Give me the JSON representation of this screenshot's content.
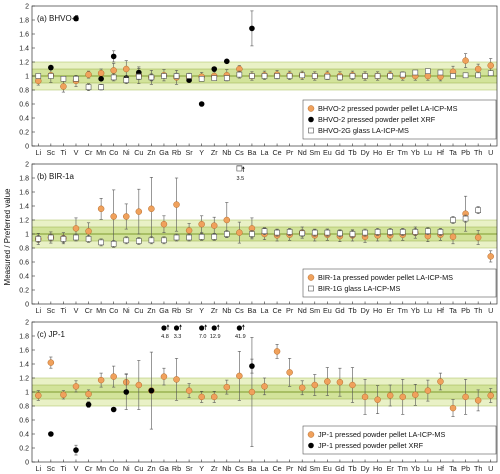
{
  "chart_data": {
    "type": "scatter",
    "ylabel": "Measured / Preferred value",
    "ylim": [
      0,
      2
    ],
    "yticks": [
      "0",
      "0.2",
      "0.4",
      "0.6",
      "0.8",
      "1",
      "1.2",
      "1.4",
      "1.6",
      "1.8",
      "2"
    ],
    "band_colors": {
      "outer": "#e9f1c6",
      "inner": "#d2e39a",
      "center": "#7f9b2e"
    },
    "marker_colors": {
      "lams": "#f0a15c",
      "xrf": "#000000",
      "glass": "#ffffff"
    },
    "elements": [
      "Li",
      "Sc",
      "Ti",
      "V",
      "Cr",
      "Mn",
      "Co",
      "Ni",
      "Cu",
      "Zn",
      "Ga",
      "Rb",
      "Sr",
      "Y",
      "Zr",
      "Nb",
      "Cs",
      "Ba",
      "La",
      "Ce",
      "Pr",
      "Nd",
      "Sm",
      "Eu",
      "Gd",
      "Tb",
      "Dy",
      "Ho",
      "Er",
      "Tm",
      "Yb",
      "Lu",
      "Hf",
      "Ta",
      "Pb",
      "Th",
      "U"
    ],
    "panels": [
      {
        "title": "(a) BHVO-2",
        "series": [
          {
            "name": "BHVO-2 pressed powder pellet LA-ICP-MS",
            "marker": "lams",
            "y": [
              0.93,
              1.01,
              0.85,
              0.93,
              1.02,
              1.04,
              1.08,
              1.1,
              1.01,
              0.98,
              1.01,
              0.98,
              0.98,
              0.99,
              1.0,
              1.01,
              1.1,
              1.0,
              1.01,
              1.02,
              1.01,
              1.01,
              1.0,
              1.01,
              1.0,
              1.01,
              1.0,
              1.0,
              1.01,
              1.0,
              1.0,
              1.0,
              0.99,
              1.06,
              1.22,
              1.1,
              1.15
            ],
            "err": [
              0.06,
              0.1,
              0.08,
              0.08,
              0.05,
              0.06,
              0.1,
              0.12,
              0.12,
              0.1,
              0.08,
              0.1,
              0.06,
              0.06,
              0.06,
              0.08,
              0.05,
              0.06,
              0.06,
              0.06,
              0.06,
              0.06,
              0.06,
              0.06,
              0.06,
              0.06,
              0.06,
              0.06,
              0.06,
              0.06,
              0.06,
              0.06,
              0.06,
              0.08,
              0.1,
              0.07,
              0.1
            ]
          },
          {
            "name": "BHVO-2 pressed powder pellet XRF",
            "marker": "xrf",
            "y": [
              null,
              1.12,
              null,
              1.82,
              null,
              0.96,
              1.28,
              0.97,
              1.05,
              0.98,
              1.0,
              1.0,
              0.94,
              0.6,
              1.1,
              1.21,
              null,
              1.68,
              null,
              null,
              null,
              null,
              null,
              null,
              null,
              null,
              null,
              null,
              null,
              null,
              null,
              null,
              null,
              null,
              null,
              null,
              null
            ],
            "err": [
              null,
              0,
              null,
              0,
              null,
              0,
              0.08,
              0,
              0.06,
              0.05,
              0,
              0,
              0,
              0,
              0,
              0,
              null,
              0.25,
              null,
              null,
              null,
              null,
              null,
              null,
              null,
              null,
              null,
              null,
              null,
              null,
              null,
              null,
              null,
              null,
              null,
              null,
              null
            ]
          },
          {
            "name": "BHVO-2G glass LA-ICP-MS",
            "marker": "glass",
            "y": [
              1.0,
              1.0,
              0.96,
              0.96,
              0.84,
              0.84,
              0.98,
              0.94,
              0.99,
              0.98,
              1.0,
              1.0,
              1.0,
              0.96,
              0.97,
              0.97,
              1.02,
              1.0,
              1.0,
              1.0,
              1.0,
              1.01,
              1.0,
              0.99,
              0.98,
              1.0,
              1.0,
              1.0,
              1.0,
              1.02,
              1.05,
              1.07,
              1.05,
              1.0,
              1.01,
              1.01,
              1.04
            ],
            "err": [
              0.03,
              0.03,
              0.03,
              0.03,
              0.05,
              0.04,
              0.05,
              0.05,
              0.04,
              0.04,
              0.03,
              0.04,
              0.03,
              0.03,
              0.03,
              0.03,
              0.05,
              0.03,
              0.03,
              0.03,
              0.03,
              0.03,
              0.03,
              0.03,
              0.03,
              0.03,
              0.03,
              0.03,
              0.03,
              0.03,
              0.03,
              0.03,
              0.03,
              0.03,
              0.03,
              0.03,
              0.03
            ]
          }
        ],
        "annotations": []
      },
      {
        "title": "(b) BIR-1a",
        "series": [
          {
            "name": "BIR-1a pressed powder pellet LA-ICP-MS",
            "marker": "lams",
            "y": [
              0.93,
              0.95,
              0.94,
              1.08,
              1.04,
              1.36,
              1.25,
              1.25,
              1.32,
              1.36,
              1.14,
              1.42,
              1.05,
              1.14,
              1.12,
              1.2,
              1.02,
              1.08,
              1.0,
              0.98,
              0.99,
              1.02,
              0.98,
              0.99,
              0.97,
              0.98,
              0.96,
              0.98,
              0.98,
              0.99,
              1.02,
              0.97,
              0.99,
              0.96,
              1.29,
              0.95,
              0.68
            ],
            "err": [
              0.08,
              0.08,
              0.08,
              0.15,
              0.12,
              0.15,
              0.38,
              0.18,
              0.32,
              0.45,
              0.12,
              0.38,
              0.1,
              0.12,
              0.12,
              0.25,
              0.15,
              0.15,
              0.08,
              0.08,
              0.08,
              0.08,
              0.08,
              0.08,
              0.08,
              0.08,
              0.08,
              0.08,
              0.08,
              0.08,
              0.08,
              0.08,
              0.08,
              0.1,
              0.25,
              0.1,
              0.08
            ]
          },
          {
            "name": "BIR-1G glass LA-ICP-MS",
            "marker": "glass",
            "y": [
              0.93,
              0.95,
              0.93,
              0.95,
              0.93,
              0.88,
              0.86,
              0.91,
              0.9,
              0.91,
              0.91,
              0.95,
              0.95,
              0.96,
              0.96,
              1.0,
              1.94,
              1.0,
              1.04,
              1.02,
              1.03,
              1.01,
              1.02,
              1.02,
              1.01,
              1.0,
              1.02,
              1.03,
              1.03,
              1.03,
              1.03,
              1.04,
              1.03,
              1.2,
              1.22,
              1.34,
              null
            ],
            "err": [
              0.05,
              0.05,
              0.05,
              0.05,
              0.05,
              0.05,
              0.05,
              0.05,
              0.05,
              0.05,
              0.05,
              0.05,
              0.05,
              0.05,
              0.05,
              0.05,
              0,
              0.05,
              0.05,
              0.05,
              0.05,
              0.05,
              0.05,
              0.05,
              0.05,
              0.05,
              0.05,
              0.05,
              0.05,
              0.05,
              0.05,
              0.05,
              0.05,
              0.05,
              0.05,
              0.05,
              null
            ]
          }
        ],
        "annotations": [
          {
            "element": "Cs",
            "text": "3.5"
          }
        ]
      },
      {
        "title": "(c) JP-1",
        "series": [
          {
            "name": "JP-1 pressed powder pellet LA-ICP-MS",
            "marker": "lams",
            "y": [
              0.95,
              1.42,
              0.96,
              1.08,
              0.97,
              1.17,
              1.22,
              1.14,
              1.1,
              1.02,
              1.22,
              1.18,
              1.02,
              0.93,
              0.93,
              1.07,
              1.23,
              1.0,
              1.08,
              1.58,
              1.28,
              1.06,
              1.1,
              1.15,
              1.14,
              1.1,
              0.93,
              0.89,
              0.95,
              0.93,
              0.96,
              1.02,
              1.15,
              0.77,
              0.93,
              0.88,
              0.95
            ],
            "err": [
              0.07,
              0.08,
              0.06,
              0.08,
              0.06,
              0.1,
              0.15,
              0.12,
              0.35,
              0.55,
              0.12,
              0.3,
              0.1,
              0.08,
              0.08,
              0.1,
              0.35,
              0.78,
              0.12,
              0.1,
              0.2,
              0.1,
              0.15,
              0.2,
              0.2,
              0.25,
              0.25,
              0.2,
              0.15,
              0.25,
              0.15,
              0.15,
              0.12,
              0.12,
              0.25,
              0.15,
              0.1
            ]
          },
          {
            "name": "JP-1 pressed powder pellet XRF",
            "marker": "xrf",
            "y": [
              null,
              0.4,
              null,
              0.17,
              0.82,
              null,
              0.75,
              1.0,
              null,
              1.02,
              null,
              null,
              null,
              null,
              null,
              null,
              null,
              1.37,
              null,
              null,
              null,
              null,
              null,
              null,
              null,
              null,
              null,
              null,
              null,
              null,
              null,
              null,
              null,
              null,
              null,
              null,
              null
            ],
            "err": [
              null,
              0,
              null,
              0.07,
              0.04,
              null,
              0,
              0.25,
              null,
              0,
              null,
              null,
              null,
              null,
              null,
              null,
              null,
              0.1,
              null,
              null,
              null,
              null,
              null,
              null,
              null,
              null,
              null,
              null,
              null,
              null,
              null,
              null,
              null,
              null,
              null,
              null,
              null
            ]
          }
        ],
        "annotations": [
          {
            "element": "Ga",
            "text": "4.8"
          },
          {
            "element": "Rb",
            "text": "3.3"
          },
          {
            "element": "Y",
            "text": "7.0"
          },
          {
            "element": "Zr",
            "text": "12.9"
          },
          {
            "element": "Cs",
            "text": "41.9"
          }
        ]
      }
    ]
  }
}
